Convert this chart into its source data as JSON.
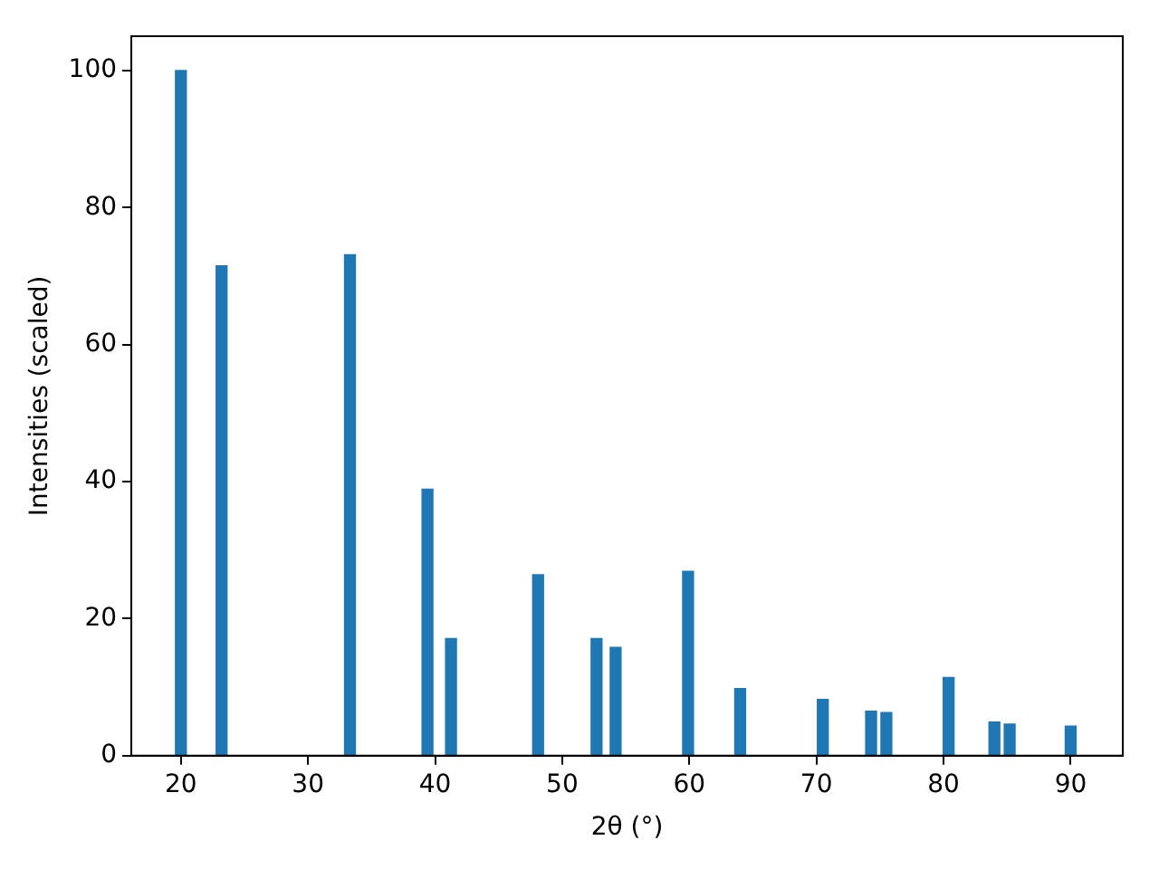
{
  "chart_data": {
    "type": "bar",
    "xlabel": "2θ (°)",
    "ylabel": "Intensities (scaled)",
    "x": [
      20.0,
      23.2,
      33.3,
      39.4,
      41.25,
      48.1,
      52.7,
      54.2,
      59.9,
      64.0,
      70.5,
      74.3,
      75.5,
      80.4,
      84.0,
      85.2,
      90.0
    ],
    "values": [
      100,
      71.5,
      73.1,
      38.9,
      17.1,
      26.4,
      17.1,
      15.8,
      26.9,
      9.8,
      8.2,
      6.5,
      6.3,
      11.4,
      4.9,
      4.6,
      4.3
    ],
    "color": "#1f77b4",
    "xlim": [
      16.1,
      94.1
    ],
    "xticks": [
      20,
      30,
      40,
      50,
      60,
      70,
      80,
      90
    ],
    "ylim": [
      0,
      105
    ],
    "yticks": [
      0,
      20,
      40,
      60,
      80,
      100
    ],
    "grid": false,
    "legend": false
  }
}
